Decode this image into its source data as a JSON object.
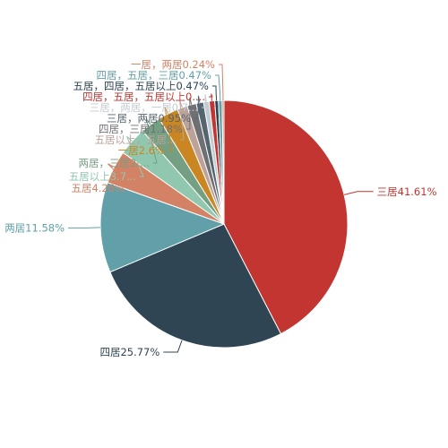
{
  "chart_data": {
    "type": "pie",
    "title": "",
    "legend": "none",
    "slices": [
      {
        "label": "三居41.61%",
        "category": "三居",
        "value": 41.61,
        "color": "#c23531"
      },
      {
        "label": "四居25.77%",
        "category": "四居",
        "value": 25.77,
        "color": "#2f4554"
      },
      {
        "label": "两居11.58%",
        "category": "两居",
        "value": 11.58,
        "color": "#61a0a8"
      },
      {
        "label": "五居4.26%",
        "category": "五居",
        "value": 4.26,
        "color": "#d48265"
      },
      {
        "label": "五居以上3.7...",
        "category": "五居以上",
        "value": 3.7,
        "color": "#91c7ae"
      },
      {
        "label": "两居，三居2....",
        "category": "两居，三居",
        "value": 2.6,
        "color": "#749f83"
      },
      {
        "label": "一居2.6%",
        "category": "一居",
        "value": 2.6,
        "color": "#ca8622"
      },
      {
        "label": "五居以上，五居...",
        "category": "五居以上，五居",
        "value": 1.3,
        "color": "#bda29a"
      },
      {
        "label": "四居，三居1.18%",
        "category": "四居，三居",
        "value": 1.18,
        "color": "#6e7074"
      },
      {
        "label": "三居，两居0.95%",
        "category": "三居，两居",
        "value": 0.95,
        "color": "#546570"
      },
      {
        "label": "三居，两居，一居0.7...",
        "category": "三居，两居，一居",
        "value": 0.71,
        "color": "#c4ccd3"
      },
      {
        "label": "四居，五居，五居以上0....",
        "category": "四居，五居，五居以上",
        "value": 0.71,
        "color": "#c23531"
      },
      {
        "label": "五居，四居，五居以上0.47%",
        "category": "五居，四居，五居以上",
        "value": 0.47,
        "color": "#2f4554"
      },
      {
        "label": "四居，五居，三居0.47%",
        "category": "四居，五居，三居",
        "value": 0.47,
        "color": "#61a0a8"
      },
      {
        "label": "一居，两居0.24%",
        "category": "一居，两居",
        "value": 0.24,
        "color": "#d48265"
      }
    ]
  }
}
